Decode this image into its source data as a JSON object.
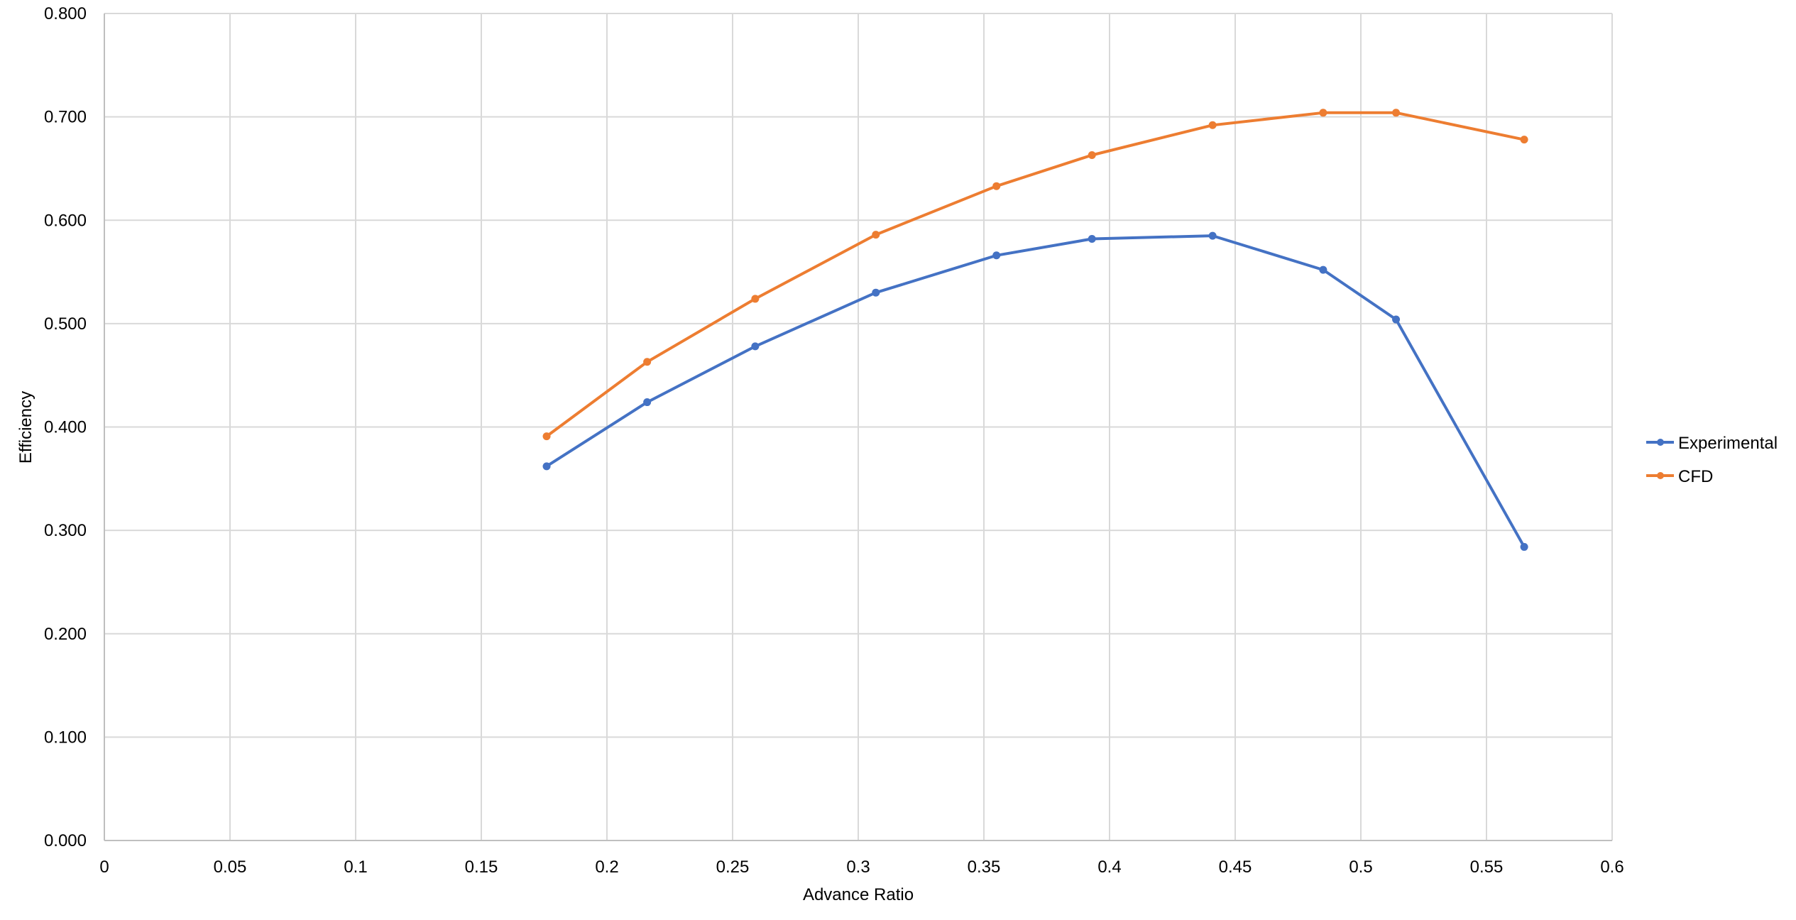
{
  "chart_data": {
    "type": "line",
    "title": "",
    "xlabel": "Advance Ratio",
    "ylabel": "Efficiency",
    "xlim": [
      0,
      0.6
    ],
    "ylim": [
      0,
      0.8
    ],
    "x_ticks": [
      "0",
      "0.05",
      "0.1",
      "0.15",
      "0.2",
      "0.25",
      "0.3",
      "0.35",
      "0.4",
      "0.45",
      "0.5",
      "0.55",
      "0.6"
    ],
    "y_ticks": [
      "0.000",
      "0.100",
      "0.200",
      "0.300",
      "0.400",
      "0.500",
      "0.600",
      "0.700",
      "0.800"
    ],
    "grid": true,
    "legend_position": "right",
    "x": [
      0.176,
      0.216,
      0.259,
      0.307,
      0.355,
      0.393,
      0.441,
      0.485,
      0.514,
      0.565
    ],
    "series": [
      {
        "name": "Experimental",
        "color": "#4472c4",
        "marker": "circle",
        "values": [
          0.362,
          0.424,
          0.478,
          0.53,
          0.566,
          0.582,
          0.585,
          0.552,
          0.504,
          0.284
        ]
      },
      {
        "name": "CFD",
        "color": "#ed7d31",
        "marker": "circle",
        "values": [
          0.391,
          0.463,
          0.524,
          0.586,
          0.633,
          0.663,
          0.692,
          0.704,
          0.704,
          0.678
        ]
      }
    ]
  }
}
